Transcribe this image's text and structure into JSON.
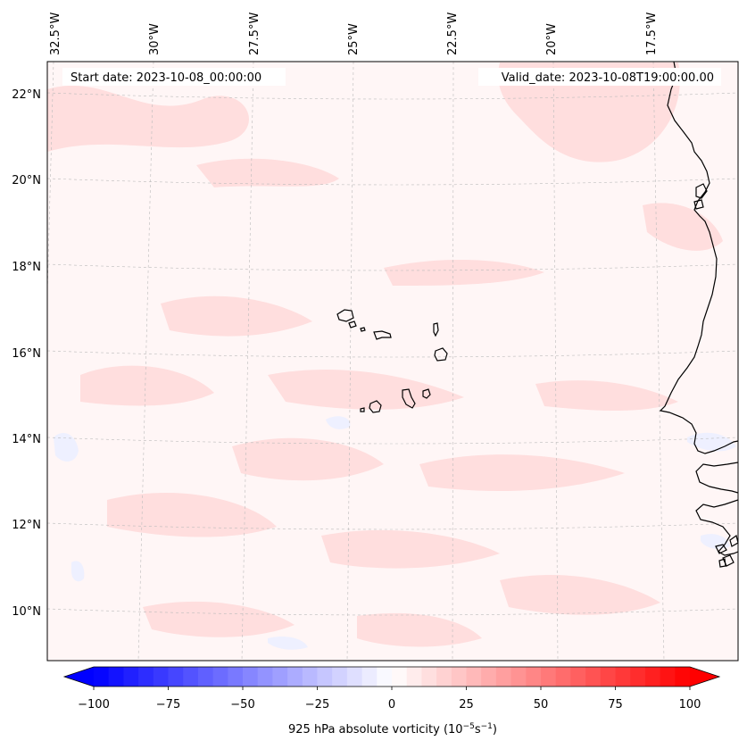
{
  "map": {
    "start_date": "Start date: 2023-10-08_00:00:00",
    "valid_date": "Valid_date: 2023-10-08T19:00:00.00",
    "lon_labels": [
      "32.5°W",
      "30°W",
      "27.5°W",
      "25°W",
      "22.5°W",
      "20°W",
      "17.5°W"
    ],
    "lat_labels": [
      "22°N",
      "20°N",
      "18°N",
      "16°N",
      "14°N",
      "12°N",
      "10°N"
    ],
    "colors": {
      "field_background": "#fff6f6",
      "pos_patch": "#ffdede",
      "neg_patch": "#eef0ff",
      "coastline": "#000000",
      "gridline": "#bbbbbb"
    }
  },
  "colorbar": {
    "label_text": "925 hPa absolute vorticity (10",
    "label_sup1": "−5",
    "label_mid": "s",
    "label_sup2": "−1",
    "label_close": ")",
    "ticks": [
      "−100",
      "−75",
      "−50",
      "−25",
      "0",
      "25",
      "50",
      "75",
      "100"
    ],
    "min": -100,
    "max": 100,
    "n_levels": 40,
    "colormap": "bwr"
  }
}
